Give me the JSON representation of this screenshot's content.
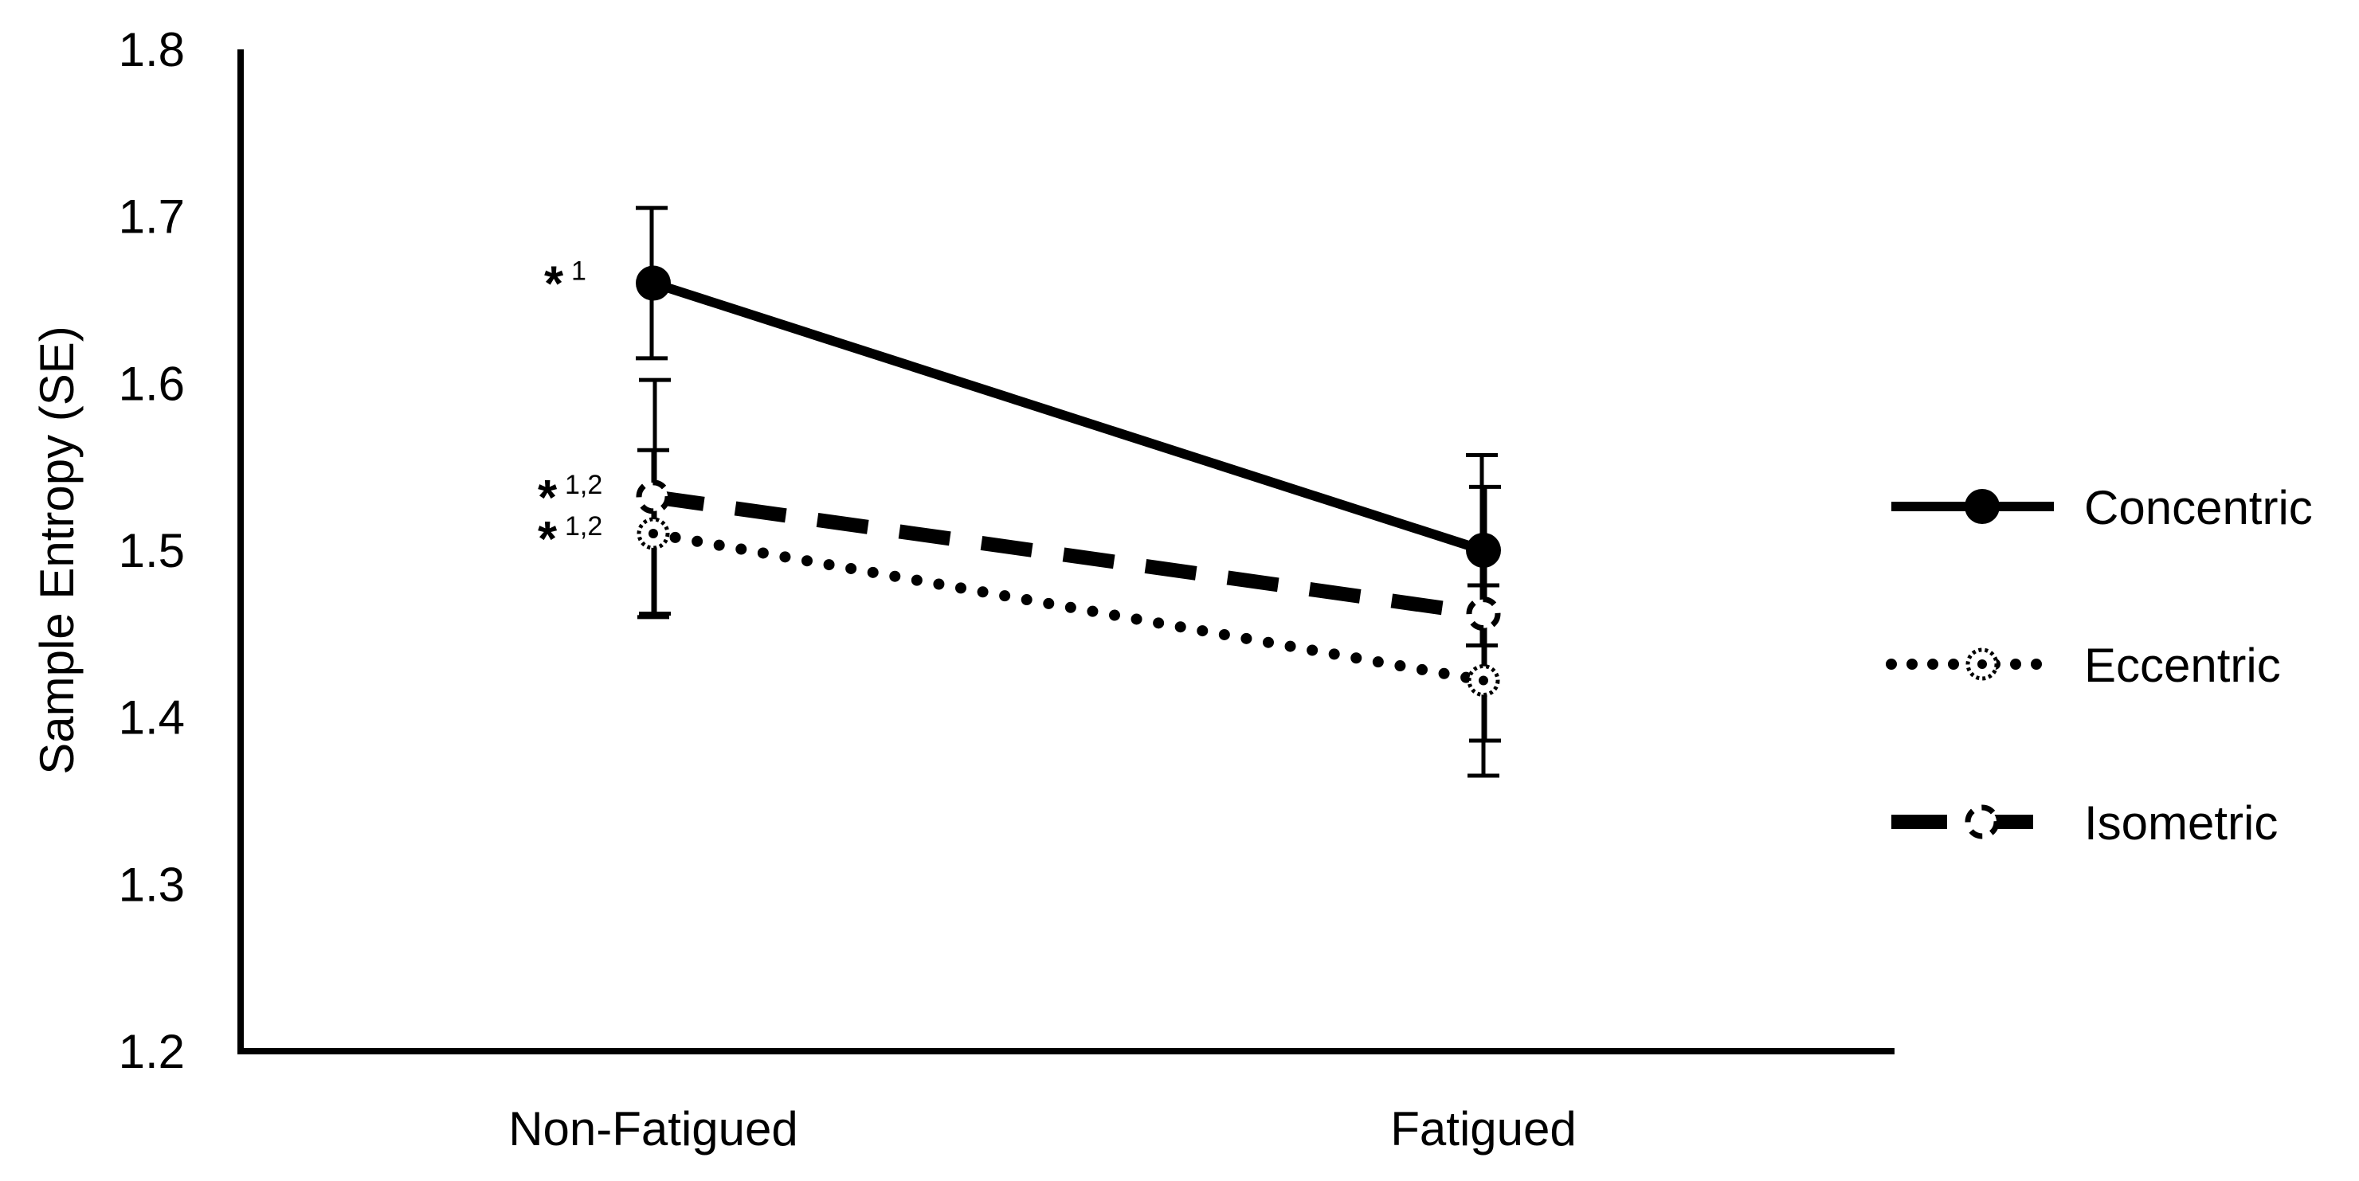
{
  "chart_data": {
    "type": "line",
    "title": "",
    "xlabel": "",
    "ylabel": "Sample Entropy (SE)",
    "categories": [
      "Non-Fatigued",
      "Fatigued"
    ],
    "ylim": [
      1.2,
      1.8
    ],
    "yticks": [
      "1.2",
      "1.3",
      "1.4",
      "1.5",
      "1.6",
      "1.7",
      "1.8"
    ],
    "grid": false,
    "legend_position": "right",
    "series": [
      {
        "name": "Concentric",
        "values": [
          1.66,
          1.5
        ],
        "error": [
          0.045,
          0.057
        ],
        "line_style": "solid",
        "marker": "filled-circle",
        "annotation": "*",
        "annotation_sup": "1"
      },
      {
        "name": "Eccentric",
        "values": [
          1.51,
          1.422
        ],
        "error": [
          0.05,
          0.057
        ],
        "line_style": "dotted",
        "marker": "dotted-circle",
        "annotation": "*",
        "annotation_sup": "1,2"
      },
      {
        "name": "Isometric",
        "values": [
          1.532,
          1.462
        ],
        "error": [
          0.07,
          0.076
        ],
        "line_style": "dashed",
        "marker": "dashed-circle",
        "annotation": "*",
        "annotation_sup": "1,2"
      }
    ],
    "colors": {
      "ink": "#000000",
      "background": "#ffffff"
    }
  }
}
